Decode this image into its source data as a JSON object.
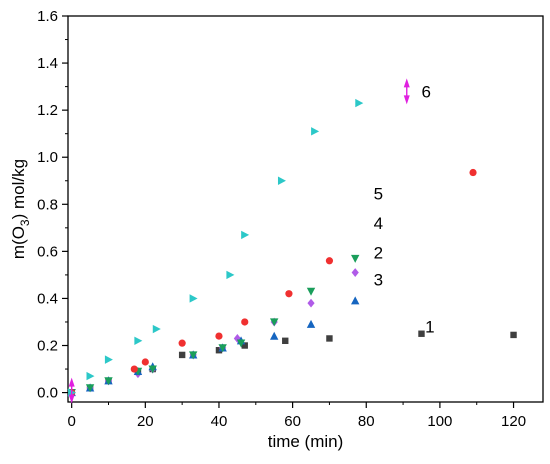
{
  "chart_data": {
    "type": "scatter",
    "title": "",
    "xlabel": "time (min)",
    "ylabel": "m(O3) mol/kg",
    "xlim": [
      -1,
      128
    ],
    "ylim": [
      -0.04,
      1.6
    ],
    "xticks": [
      0,
      20,
      40,
      60,
      80,
      100,
      120
    ],
    "yticks": [
      0.0,
      0.2,
      0.4,
      0.6,
      0.8,
      1.0,
      1.2,
      1.4,
      1.6
    ],
    "grid": false,
    "series": [
      {
        "name": "1",
        "marker": "square",
        "color": "#3f3f3f",
        "x": [
          0,
          5,
          10,
          18,
          22,
          30,
          40,
          47,
          58,
          70,
          95,
          120
        ],
        "y": [
          0.0,
          0.02,
          0.05,
          0.09,
          0.1,
          0.16,
          0.18,
          0.2,
          0.22,
          0.23,
          0.25,
          0.245
        ]
      },
      {
        "name": "2",
        "marker": "diamond",
        "color": "#b05be8",
        "x": [
          0,
          5,
          10,
          18,
          22,
          33,
          41,
          45,
          55,
          65,
          77
        ],
        "y": [
          0.0,
          0.02,
          0.05,
          0.08,
          0.1,
          0.16,
          0.19,
          0.23,
          0.3,
          0.38,
          0.51
        ]
      },
      {
        "name": "3",
        "marker": "triangle-up",
        "color": "#1565c0",
        "x": [
          0,
          5,
          10,
          18,
          22,
          33,
          41,
          46,
          55,
          65,
          77
        ],
        "y": [
          0.0,
          0.02,
          0.05,
          0.09,
          0.11,
          0.16,
          0.19,
          0.22,
          0.24,
          0.29,
          0.39
        ]
      },
      {
        "name": "4",
        "marker": "triangle-down",
        "color": "#1a9e5b",
        "x": [
          0,
          5,
          10,
          18,
          22,
          33,
          41,
          46,
          55,
          65,
          77
        ],
        "y": [
          0.0,
          0.02,
          0.05,
          0.09,
          0.1,
          0.16,
          0.19,
          0.21,
          0.3,
          0.43,
          0.57
        ]
      },
      {
        "name": "5",
        "marker": "circle",
        "color": "#f03030",
        "x": [
          0,
          17,
          20,
          30,
          40,
          47,
          59,
          70,
          109
        ],
        "y": [
          0.0,
          0.1,
          0.13,
          0.21,
          0.24,
          0.3,
          0.42,
          0.56,
          0.935
        ]
      },
      {
        "name": "6",
        "marker": "triangle-right",
        "color": "#2cc8c8",
        "x": [
          0,
          5,
          10,
          18,
          23,
          33,
          43,
          47,
          57,
          66,
          78
        ],
        "y": [
          0.0,
          0.07,
          0.14,
          0.22,
          0.27,
          0.4,
          0.5,
          0.67,
          0.9,
          1.11,
          1.23
        ]
      }
    ],
    "zero_marker": {
      "color": "#e020e0",
      "x": 0,
      "y": 0.0
    },
    "label_marker": {
      "color": "#e020e0",
      "x": 91,
      "y": 1.28
    },
    "series_labels": [
      {
        "text": "6",
        "x": 95,
        "y": 1.28
      },
      {
        "text": "5",
        "x": 82,
        "y": 0.845
      },
      {
        "text": "4",
        "x": 82,
        "y": 0.72
      },
      {
        "text": "2",
        "x": 82,
        "y": 0.595
      },
      {
        "text": "3",
        "x": 82,
        "y": 0.48
      },
      {
        "text": "1",
        "x": 96,
        "y": 0.28
      }
    ]
  }
}
